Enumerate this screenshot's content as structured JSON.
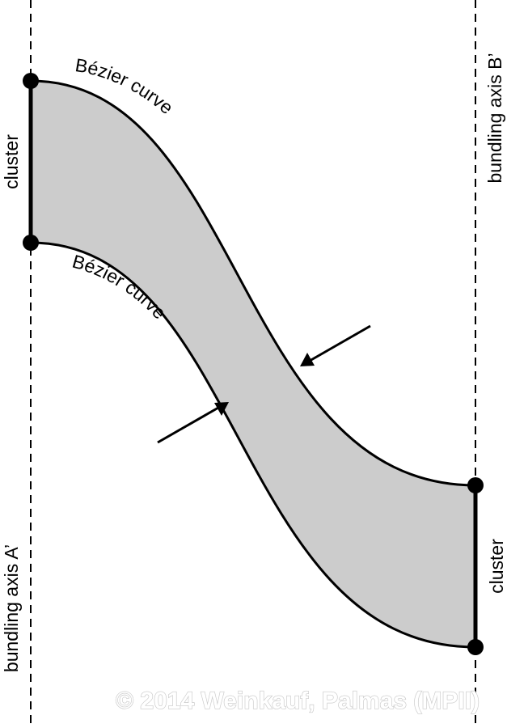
{
  "labels": {
    "curve_top": "Bézier curve",
    "curve_bottom": "Bézier curve",
    "cluster_left": "cluster",
    "cluster_right": "cluster",
    "axis_left": "bundling axis A’",
    "axis_right": "bundling axis B’"
  },
  "watermark": "© 2014 Weinkauf, Palmas (MPII)",
  "colors": {
    "band_fill": "#cccccc",
    "stroke": "#000000",
    "background": "#ffffff"
  }
}
